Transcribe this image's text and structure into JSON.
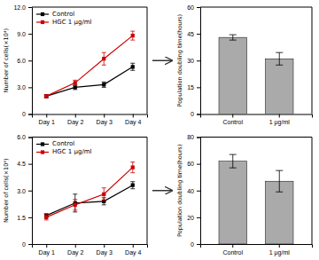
{
  "chart_data": [
    {
      "type": "line",
      "x": [
        1,
        2,
        3,
        4
      ],
      "xlim": [
        0.5,
        4.5
      ],
      "xticks": [
        {
          "value": 1,
          "label": "Day 1"
        },
        {
          "value": 2,
          "label": "Day 2"
        },
        {
          "value": 3,
          "label": "Day 3"
        },
        {
          "value": 4,
          "label": "Day 4"
        }
      ],
      "ylim": [
        0,
        12
      ],
      "yticks": [
        0,
        {
          "value": 3,
          "label": "3.0"
        },
        {
          "value": 6,
          "label": "6.0"
        },
        {
          "value": 9,
          "label": "9.0"
        },
        {
          "value": 12,
          "label": "12.0"
        }
      ],
      "ylabel": "Number of cells(×10⁴)",
      "legend": "upper left",
      "grid": false,
      "series": [
        {
          "name": "Control",
          "color": "#000000",
          "marker": "square",
          "values": [
            2.0,
            3.0,
            3.3,
            5.3
          ],
          "errors": [
            0.15,
            0.25,
            0.3,
            0.4
          ]
        },
        {
          "name": "HGC 1 μg/ml",
          "color": "#cc0000",
          "marker": "square",
          "values": [
            2.0,
            3.5,
            6.2,
            8.8
          ],
          "errors": [
            0.15,
            0.3,
            0.7,
            0.5
          ]
        }
      ]
    },
    {
      "type": "bar",
      "categories": [
        "Control",
        "1 μg/ml"
      ],
      "values": [
        43.0,
        31.0
      ],
      "errors": [
        1.5,
        3.5
      ],
      "color": "#aaaaaa",
      "ylim": [
        0,
        60
      ],
      "yticks": [
        0,
        15,
        30,
        45,
        60
      ],
      "ylabel": "Population doubling time(hours)",
      "grid": false
    },
    {
      "type": "line",
      "x": [
        1,
        2,
        3,
        4
      ],
      "xlim": [
        0.5,
        4.5
      ],
      "xticks": [
        {
          "value": 1,
          "label": "Day 1"
        },
        {
          "value": 2,
          "label": "Day 2"
        },
        {
          "value": 3,
          "label": "Day 3"
        },
        {
          "value": 4,
          "label": "Day 4"
        }
      ],
      "ylim": [
        0,
        6
      ],
      "yticks": [
        0,
        1.5,
        {
          "value": 3,
          "label": "3.0"
        },
        4.5,
        {
          "value": 6,
          "label": "6.0"
        }
      ],
      "ylabel": "Number of cells(×10⁴)",
      "legend": "upper left",
      "grid": false,
      "series": [
        {
          "name": "Control",
          "color": "#000000",
          "marker": "square",
          "values": [
            1.6,
            2.3,
            2.4,
            3.3
          ],
          "errors": [
            0.1,
            0.5,
            0.2,
            0.2
          ]
        },
        {
          "name": "HGC 1 μg/ml",
          "color": "#cc0000",
          "marker": "square",
          "values": [
            1.5,
            2.2,
            2.8,
            4.3
          ],
          "errors": [
            0.15,
            0.3,
            0.35,
            0.3
          ]
        }
      ]
    },
    {
      "type": "bar",
      "categories": [
        "Control",
        "1 μg/ml"
      ],
      "values": [
        62.0,
        47.0
      ],
      "errors": [
        5.0,
        8.0
      ],
      "color": "#aaaaaa",
      "ylim": [
        0,
        80
      ],
      "yticks": [
        0,
        20,
        40,
        60,
        80
      ],
      "ylabel": "Population doubling time(hours)",
      "grid": false
    }
  ]
}
